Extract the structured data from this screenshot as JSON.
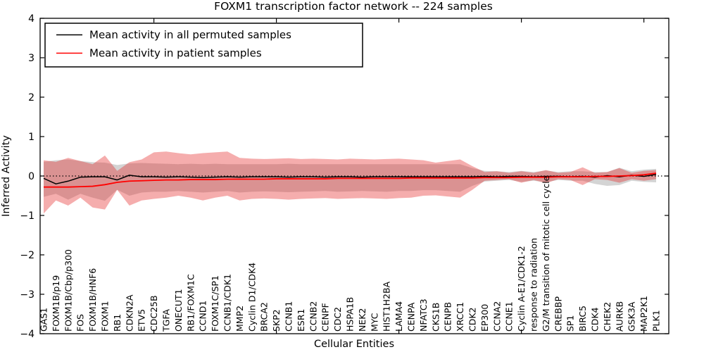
{
  "title": "FOXM1 transcription factor network -- 224 samples",
  "legend": {
    "items": [
      {
        "label": "Mean activity in all permuted samples",
        "color": "#000000"
      },
      {
        "label": "Mean activity in patient samples",
        "color": "#ff0000"
      }
    ]
  },
  "chart_data": {
    "type": "line",
    "title": "FOXM1 transcription factor network -- 224 samples",
    "xlabel": "Cellular Entities",
    "ylabel": "Inferred Activity",
    "ylim": [
      -4,
      4
    ],
    "yticks": [
      4,
      3,
      2,
      1,
      0,
      -1,
      -2,
      -3,
      -4
    ],
    "x_axis_numeric_ticks": [
      10,
      20,
      30,
      40,
      50
    ],
    "grid": false,
    "zero_line_style": "dotted",
    "legend_position": "upper-left",
    "categories": [
      "GAS1",
      "FOXM1B/p19",
      "FOXM1B/Cbp/p300",
      "FOS",
      "FOXM1B/HNF6",
      "FOXM1",
      "RB1",
      "CDKN2A",
      "ETV5",
      "CDC25B",
      "TGFA",
      "ONECUT1",
      "RB1/FOXM1C",
      "CCND1",
      "FOXM1C/SP1",
      "CCNB1/CDK1",
      "MMP2",
      "Cyclin D1/CDK4",
      "BRCA2",
      "SKP2",
      "CCNB1",
      "ESR1",
      "CCNB2",
      "CENPF",
      "CDC2",
      "HSPA1B",
      "NEK2",
      "MYC",
      "HIST1H2BA",
      "LAMA4",
      "CENPA",
      "NFATC3",
      "CKS1B",
      "CENPB",
      "XRCC1",
      "CDK2",
      "EP300",
      "CCNA2",
      "CCNE1",
      "Cyclin A-E1/CDK1-2",
      "response to radiation",
      "G2/M transition of mitotic cell cycle",
      "CREBBP",
      "SP1",
      "BIRC5",
      "CDK4",
      "CHEK2",
      "AURKB",
      "GSK3A",
      "MAP2K1",
      "PLK1"
    ],
    "series": [
      {
        "name": "Mean activity in all permuted samples",
        "color": "#000000",
        "width": 1.5,
        "values": [
          -0.06,
          -0.2,
          -0.13,
          -0.03,
          -0.02,
          -0.02,
          -0.1,
          0.02,
          -0.02,
          -0.02,
          -0.03,
          -0.02,
          -0.03,
          -0.04,
          -0.03,
          -0.02,
          -0.03,
          -0.02,
          -0.02,
          -0.02,
          -0.03,
          -0.02,
          -0.02,
          -0.03,
          -0.02,
          -0.02,
          -0.03,
          -0.02,
          -0.02,
          -0.02,
          -0.02,
          -0.02,
          -0.02,
          -0.02,
          -0.02,
          -0.02,
          -0.01,
          -0.02,
          -0.01,
          -0.01,
          -0.02,
          -0.01,
          -0.01,
          -0.02,
          -0.01,
          -0.03,
          0.01,
          -0.02,
          0.02,
          -0.01,
          0.04
        ]
      },
      {
        "name": "Mean activity in patient samples",
        "color": "#ff0000",
        "width": 1.8,
        "values": [
          -0.28,
          -0.28,
          -0.28,
          -0.27,
          -0.26,
          -0.22,
          -0.16,
          -0.13,
          -0.12,
          -0.11,
          -0.1,
          -0.1,
          -0.09,
          -0.09,
          -0.09,
          -0.08,
          -0.08,
          -0.08,
          -0.08,
          -0.07,
          -0.07,
          -0.07,
          -0.07,
          -0.07,
          -0.06,
          -0.06,
          -0.06,
          -0.06,
          -0.06,
          -0.06,
          -0.05,
          -0.05,
          -0.05,
          -0.05,
          -0.05,
          -0.05,
          -0.04,
          -0.04,
          -0.04,
          -0.03,
          -0.03,
          -0.03,
          -0.02,
          -0.02,
          -0.02,
          -0.01,
          -0.01,
          0.0,
          0.01,
          0.03,
          0.07
        ]
      }
    ],
    "bands": [
      {
        "name": "permuted samples range",
        "color": "#787878",
        "opacity": 0.32,
        "upper": [
          0.36,
          0.4,
          0.42,
          0.38,
          0.35,
          0.34,
          0.28,
          0.32,
          0.33,
          0.32,
          0.31,
          0.3,
          0.31,
          0.3,
          0.31,
          0.3,
          0.3,
          0.3,
          0.3,
          0.3,
          0.31,
          0.3,
          0.3,
          0.3,
          0.3,
          0.3,
          0.3,
          0.3,
          0.3,
          0.3,
          0.3,
          0.3,
          0.3,
          0.3,
          0.3,
          0.2,
          0.13,
          0.12,
          0.1,
          0.13,
          0.1,
          0.14,
          0.1,
          0.12,
          0.12,
          0.1,
          0.1,
          0.21,
          0.12,
          0.16,
          0.18
        ],
        "lower": [
          -0.53,
          -0.45,
          -0.6,
          -0.45,
          -0.55,
          -0.63,
          -0.35,
          -0.5,
          -0.42,
          -0.4,
          -0.4,
          -0.38,
          -0.4,
          -0.42,
          -0.4,
          -0.38,
          -0.42,
          -0.4,
          -0.39,
          -0.4,
          -0.41,
          -0.4,
          -0.39,
          -0.38,
          -0.4,
          -0.39,
          -0.38,
          -0.39,
          -0.4,
          -0.38,
          -0.38,
          -0.36,
          -0.36,
          -0.38,
          -0.4,
          -0.25,
          -0.14,
          -0.12,
          -0.1,
          -0.15,
          -0.12,
          -0.16,
          -0.1,
          -0.12,
          -0.12,
          -0.2,
          -0.25,
          -0.23,
          -0.12,
          -0.15,
          -0.16
        ]
      },
      {
        "name": "patient samples range",
        "color": "#e62828",
        "opacity": 0.38,
        "upper": [
          0.4,
          0.36,
          0.46,
          0.38,
          0.3,
          0.52,
          0.13,
          0.35,
          0.42,
          0.6,
          0.62,
          0.58,
          0.55,
          0.58,
          0.6,
          0.62,
          0.46,
          0.44,
          0.43,
          0.44,
          0.45,
          0.43,
          0.44,
          0.43,
          0.42,
          0.44,
          0.43,
          0.42,
          0.43,
          0.44,
          0.42,
          0.4,
          0.34,
          0.38,
          0.42,
          0.25,
          0.1,
          0.12,
          0.08,
          0.12,
          0.08,
          0.15,
          0.08,
          0.1,
          0.22,
          0.08,
          0.1,
          0.2,
          0.08,
          0.13,
          0.15
        ],
        "lower": [
          -0.95,
          -0.62,
          -0.75,
          -0.55,
          -0.8,
          -0.85,
          -0.35,
          -0.75,
          -0.62,
          -0.58,
          -0.55,
          -0.5,
          -0.55,
          -0.62,
          -0.55,
          -0.5,
          -0.62,
          -0.58,
          -0.57,
          -0.58,
          -0.6,
          -0.58,
          -0.57,
          -0.56,
          -0.58,
          -0.57,
          -0.56,
          -0.57,
          -0.58,
          -0.56,
          -0.55,
          -0.5,
          -0.49,
          -0.52,
          -0.55,
          -0.35,
          -0.12,
          -0.1,
          -0.08,
          -0.17,
          -0.1,
          -0.18,
          -0.08,
          -0.1,
          -0.23,
          -0.08,
          -0.1,
          -0.17,
          -0.08,
          -0.12,
          -0.08
        ]
      }
    ]
  }
}
